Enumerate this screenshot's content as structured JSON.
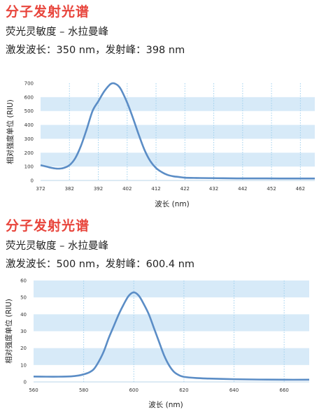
{
  "sections": [
    {
      "title": "分子发射光谱",
      "subtitle": "荧光灵敏度 – 水拉曼峰",
      "info": "激发波长：350 nm，发射峰：398 nm"
    },
    {
      "title": "分子发射光谱",
      "subtitle": "荧光灵敏度 – 水拉曼峰",
      "info": "激发波长：500 nm，发射峰：600.4 nm"
    }
  ],
  "colors": {
    "line": "#5b8dc6",
    "band": "#d7eaf8",
    "gridline": "#9fd0ee",
    "title": "#e8453c"
  },
  "chart_data": [
    {
      "type": "line",
      "xlabel": "波长 (nm)",
      "ylabel": "相对强度单位 (RIU)",
      "xlim": [
        372,
        467
      ],
      "ylim": [
        0,
        700
      ],
      "xticks": [
        372,
        382,
        392,
        402,
        412,
        422,
        432,
        442,
        452,
        462
      ],
      "yticks": [
        0,
        100,
        200,
        300,
        400,
        500,
        600,
        700
      ],
      "grid": "horizontal bands + dotted vertical lines",
      "series": [
        {
          "x": [
            372,
            374,
            376,
            378,
            380,
            382,
            384,
            386,
            388,
            390,
            392,
            394,
            396,
            397,
            398,
            399,
            400,
            402,
            404,
            406,
            408,
            410,
            412,
            414,
            416,
            418,
            420,
            422,
            426,
            430,
            435,
            440,
            445,
            450,
            455,
            460,
            465,
            467
          ],
          "y": [
            110,
            100,
            90,
            85,
            90,
            110,
            160,
            250,
            370,
            500,
            570,
            640,
            690,
            700,
            695,
            680,
            650,
            560,
            450,
            330,
            220,
            140,
            90,
            60,
            40,
            30,
            25,
            20,
            18,
            17,
            16,
            15,
            15,
            15,
            14,
            14,
            14,
            14
          ]
        }
      ]
    },
    {
      "type": "line",
      "xlabel": "波长 (nm)",
      "ylabel": "相对强度单位 (RIU)",
      "xlim": [
        560,
        670
      ],
      "ylim": [
        0,
        60
      ],
      "xticks": [
        560,
        580,
        600,
        620,
        640,
        660
      ],
      "yticks": [
        0,
        10,
        20,
        30,
        40,
        50,
        60
      ],
      "grid": "horizontal bands + dotted vertical lines",
      "series": [
        {
          "x": [
            560,
            565,
            570,
            575,
            578,
            580,
            582,
            584,
            586,
            588,
            590,
            592,
            594,
            596,
            598,
            600,
            602,
            604,
            606,
            608,
            610,
            612,
            614,
            616,
            618,
            620,
            625,
            630,
            640,
            650,
            660,
            670
          ],
          "y": [
            3.2,
            3.1,
            3.1,
            3.3,
            3.8,
            4.5,
            5.5,
            7.5,
            12,
            18,
            26,
            33,
            40,
            46,
            51,
            53,
            51,
            46,
            40,
            32,
            24,
            16,
            10,
            6,
            4,
            3.0,
            2.3,
            2.0,
            1.6,
            1.4,
            1.3,
            1.3
          ]
        }
      ]
    }
  ]
}
